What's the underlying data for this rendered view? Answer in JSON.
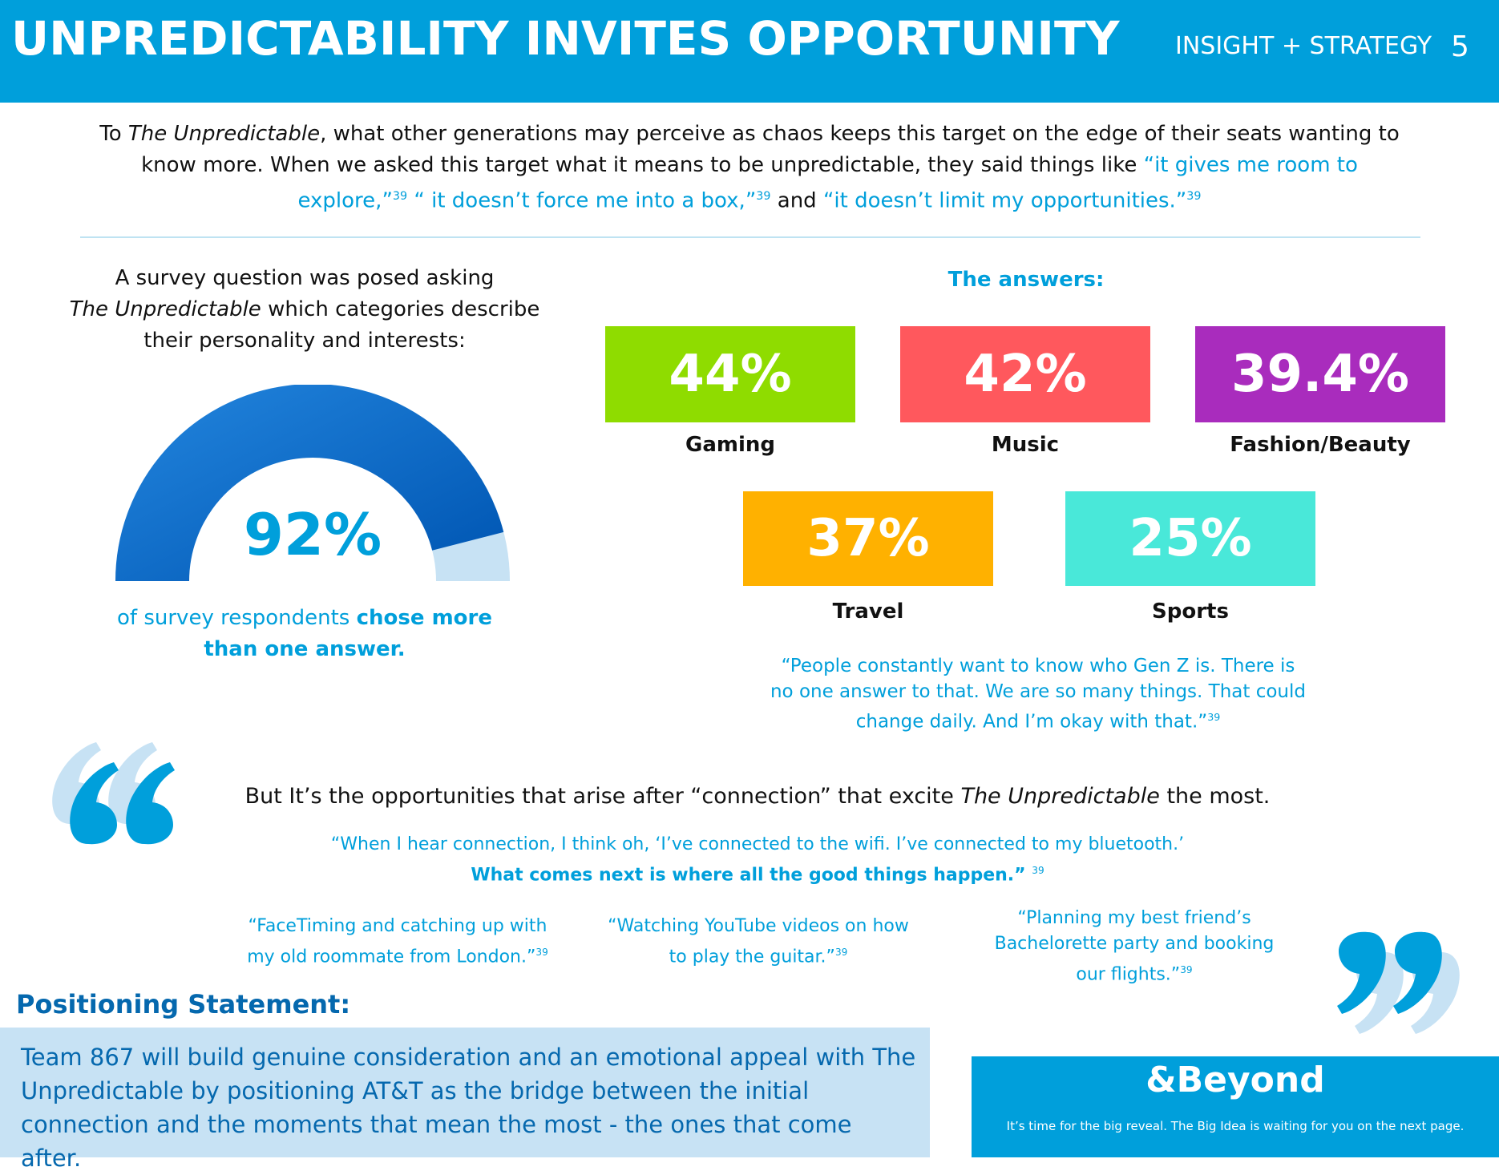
{
  "header": {
    "title": "UNPREDICTABILITY INVITES OPPORTUNITY",
    "section": "INSIGHT + STRATEGY",
    "page_number": "5",
    "bg_color": "#009fdb"
  },
  "intro": {
    "p1": "To ",
    "italic1": "The Unpredictable",
    "p2": ", what other generations may perceive as chaos keeps this target on the edge of their seats wanting to know more. When we asked this target what it means to be unpredictable, they said things like ",
    "q1": "“it gives me room to explore,”",
    "sup1": "39",
    "q2": " “ it doesn’t force me into a box,”",
    "sup2": "39",
    "and": " and ",
    "q3": "“it doesn’t limit my opportunities.”",
    "sup3": "39"
  },
  "survey": {
    "line1": "A survey question was posed asking",
    "italic": "The Unpredictable",
    "line2": " which categories describe their personality and interests:"
  },
  "gauge": {
    "value": 92,
    "value_label": "92%",
    "caption_plain": "of survey respondents ",
    "caption_bold": "chose more than one answer.",
    "fill_color": "#0a63c9",
    "track_color": "#c7e2f4"
  },
  "answers": {
    "heading": "The answers:",
    "items": [
      {
        "value": "44%",
        "label": "Gaming",
        "color": "#8fdc00"
      },
      {
        "value": "42%",
        "label": "Music",
        "color": "#ff585d"
      },
      {
        "value": "39.4%",
        "label": "Fashion/Beauty",
        "color": "#a92cbd"
      },
      {
        "value": "37%",
        "label": "Travel",
        "color": "#ffb100"
      },
      {
        "value": "25%",
        "label": "Sports",
        "color": "#49e8d9"
      }
    ],
    "quote": "“People constantly want to know who Gen Z is. There is no one answer to that. We are so many things. That could change daily. And I’m okay with that.”",
    "quote_sup": "39"
  },
  "opportunities": {
    "text1": "But It’s the opportunities that arise after “connection” that excite ",
    "italic": "The Unpredictable",
    "text2": " the most.",
    "connection_quote": "“When I hear connection, I think oh, ‘I’ve connected to the wifi. I’ve connected to my bluetooth.’",
    "connection_bold": "What comes next is where all the good things happen.” ",
    "connection_sup": "39",
    "quotes": [
      {
        "text": "“FaceTiming and catching up with my old roommate from London.”",
        "sup": "39"
      },
      {
        "text": "“Watching YouTube videos on how to play the guitar.”",
        "sup": "39"
      },
      {
        "text": "“Planning my best friend’s Bachelorette party and booking our flights.”",
        "sup": "39"
      }
    ]
  },
  "positioning": {
    "heading": "Positioning Statement:",
    "text": "Team 867 will build genuine consideration and an emotional appeal with The Unpredictable by positioning AT&T as the bridge between the initial connection and the moments that mean the most - the ones that come after."
  },
  "beyond": {
    "title": "&Beyond",
    "subtitle": "It’s time for the big reveal. The Big Idea is waiting for you on the next page."
  },
  "icons": {
    "open_quote": "open-quote-icon",
    "close_quote": "close-quote-icon"
  }
}
